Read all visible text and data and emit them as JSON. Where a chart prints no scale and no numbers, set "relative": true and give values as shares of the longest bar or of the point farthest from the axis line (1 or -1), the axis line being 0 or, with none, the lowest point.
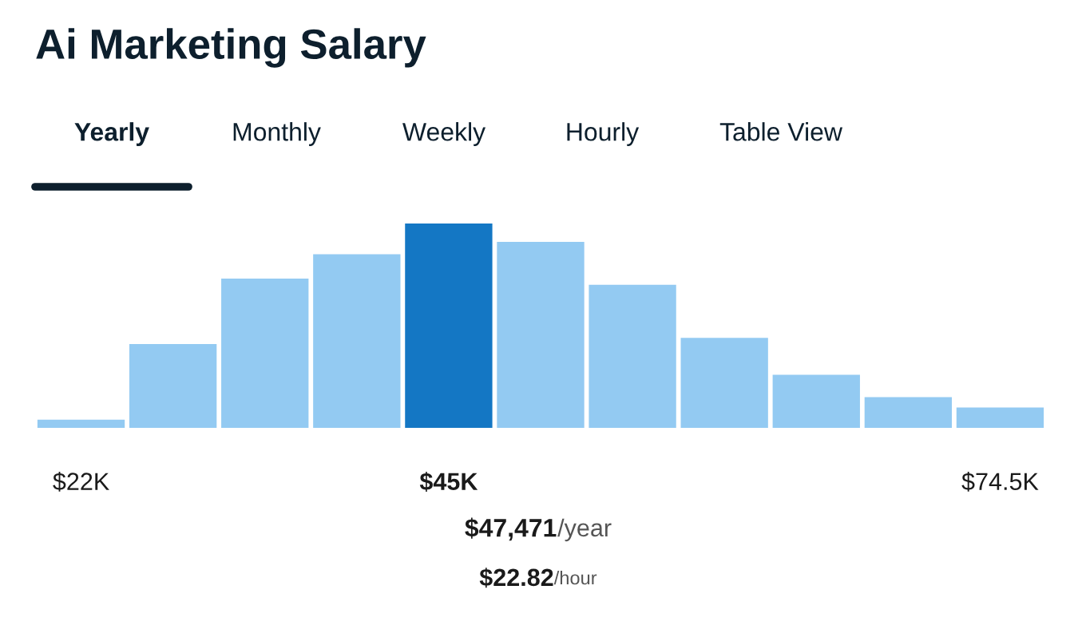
{
  "chart_data": {
    "type": "bar",
    "title": "Ai Marketing Salary",
    "relative": true,
    "categories": [
      "$22K",
      null,
      null,
      null,
      "$45K",
      null,
      null,
      null,
      null,
      null,
      "$74.5K"
    ],
    "values": [
      0.04,
      0.41,
      0.73,
      0.85,
      1,
      0.91,
      0.7,
      0.44,
      0.26,
      0.15,
      0.1
    ],
    "colors": [
      "#93caf2",
      "#93caf2",
      "#93caf2",
      "#93caf2",
      "#1477c4",
      "#93caf2",
      "#93caf2",
      "#93caf2",
      "#93caf2",
      "#93caf2",
      "#93caf2"
    ],
    "grid": false,
    "legend": false,
    "annotations": [
      "Yearly",
      "Monthly",
      "Weekly",
      "Hourly",
      "Table View",
      "$47,471/year",
      "$22.82/hour"
    ]
  }
}
